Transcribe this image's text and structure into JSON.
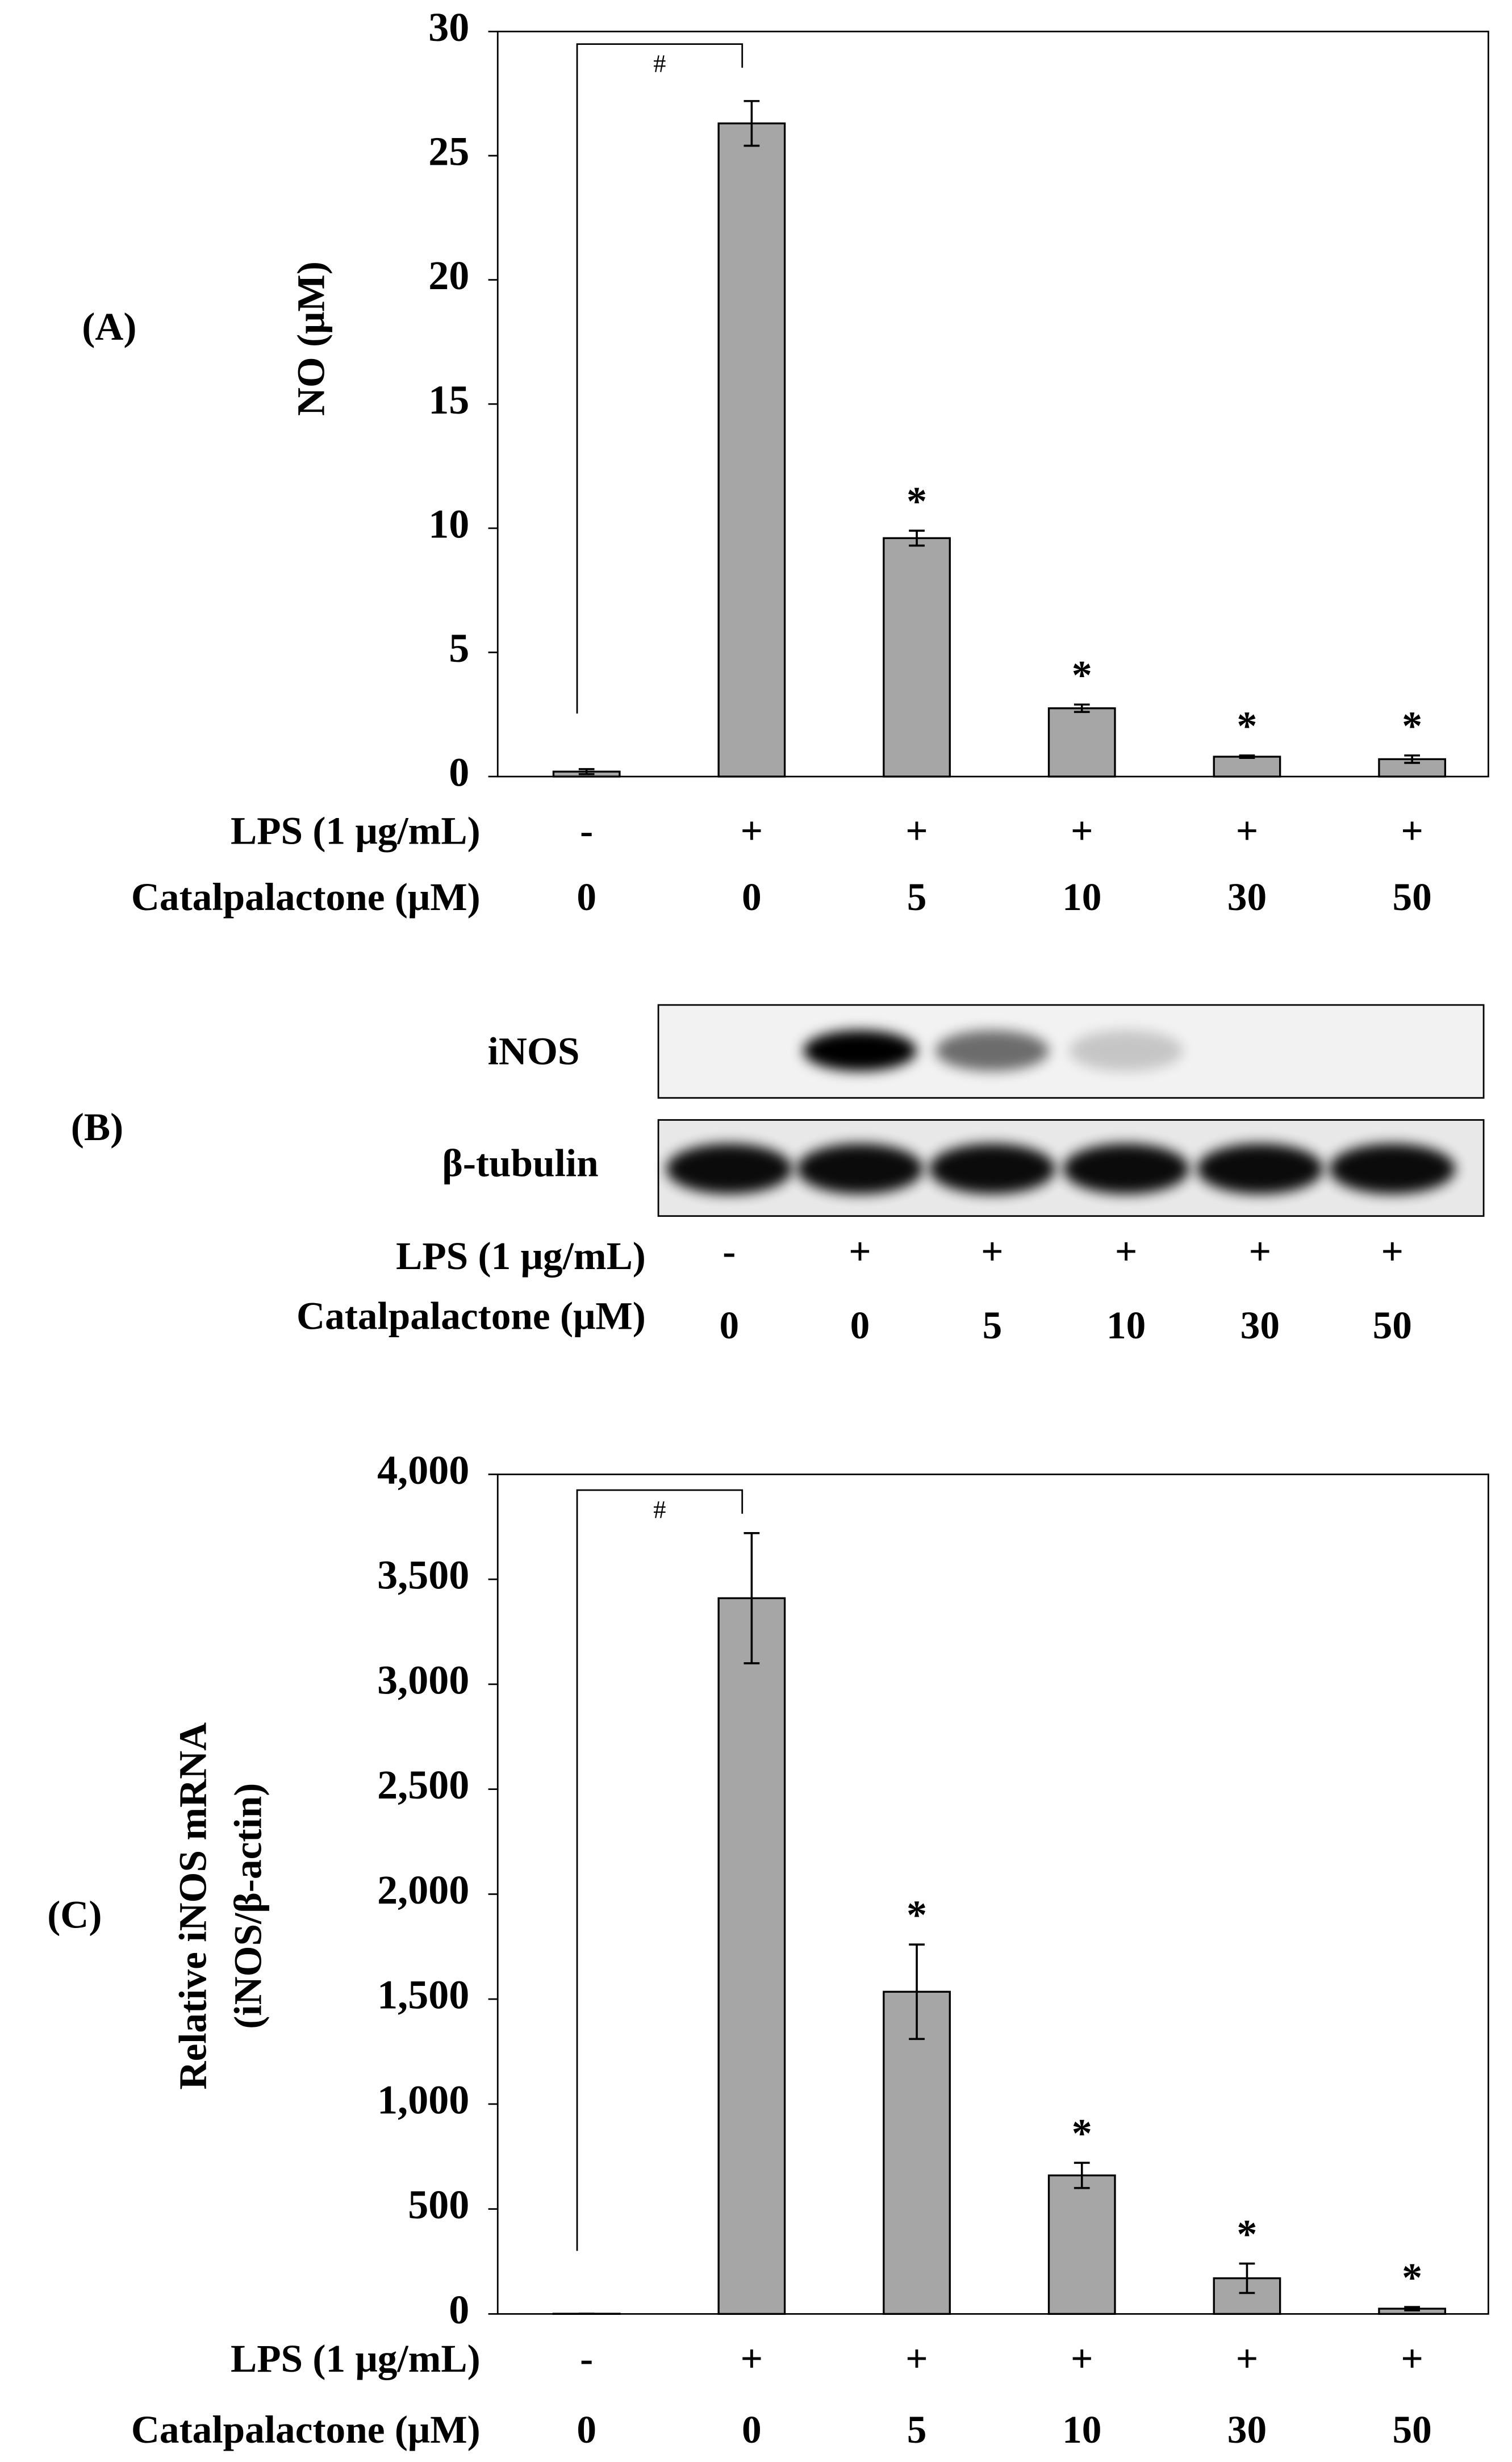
{
  "chart_data": [
    {
      "type": "bar",
      "panel_label": "(A)",
      "y_label": [
        "NO (μM)"
      ],
      "lps_label": "LPS (1 μg/mL)",
      "lps": [
        "-",
        "+",
        "+",
        "+",
        "+",
        "+"
      ],
      "category_label": "Catalpalactone (μM)",
      "categories": [
        "0",
        "0",
        "5",
        "10",
        "30",
        "50"
      ],
      "values": [
        0.2,
        26.3,
        9.6,
        2.75,
        0.8,
        0.7
      ],
      "errors": [
        0.1,
        0.9,
        0.3,
        0.15,
        0.05,
        0.15
      ],
      "bar_labels": [
        null,
        null,
        "*",
        "*",
        "*",
        "*"
      ],
      "significance_label": "#",
      "color": "#a6a6a6",
      "ylim": [
        0,
        30
      ],
      "yticks": [
        0,
        5,
        10,
        15,
        20,
        25,
        30
      ]
    },
    {
      "type": "bar",
      "panel_label": "(C)",
      "y_label": [
        "Relative iNOS mRNA",
        "(iNOS/β-actin)"
      ],
      "lps_label": "LPS (1 μg/mL)",
      "lps": [
        "-",
        "+",
        "+",
        "+",
        "+",
        "+"
      ],
      "category_label": "Catalpalactone (μM)",
      "categories": [
        "0",
        "0",
        "5",
        "10",
        "30",
        "50"
      ],
      "values": [
        1,
        3410,
        1535,
        660,
        170,
        25
      ],
      "errors": [
        0,
        310,
        225,
        60,
        70,
        8
      ],
      "bar_labels": [
        null,
        null,
        "*",
        "*",
        "*",
        "*"
      ],
      "significance_label": "#",
      "color": "#a6a6a6",
      "ylim": [
        0,
        4000
      ],
      "yticks": [
        0,
        500,
        {
          "value": 1000,
          "label": "1,000"
        },
        {
          "value": 1500,
          "label": "1,500"
        },
        {
          "value": 2000,
          "label": "2,000"
        },
        {
          "value": 2500,
          "label": "2,500"
        },
        {
          "value": 3000,
          "label": "3,000"
        },
        {
          "value": 3500,
          "label": "3,500"
        },
        {
          "value": 4000,
          "label": "4,000"
        }
      ]
    }
  ],
  "blot": {
    "panel_label": "(B)",
    "bands": [
      "iNOS",
      "β-tubulin"
    ],
    "lps_label": "LPS (1 μg/mL)",
    "lps": [
      "-",
      "+",
      "+",
      "+",
      "+",
      "+"
    ],
    "category_label": "Catalpalactone (μM)",
    "categories": [
      "0",
      "0",
      "5",
      "10",
      "30",
      "50"
    ]
  }
}
